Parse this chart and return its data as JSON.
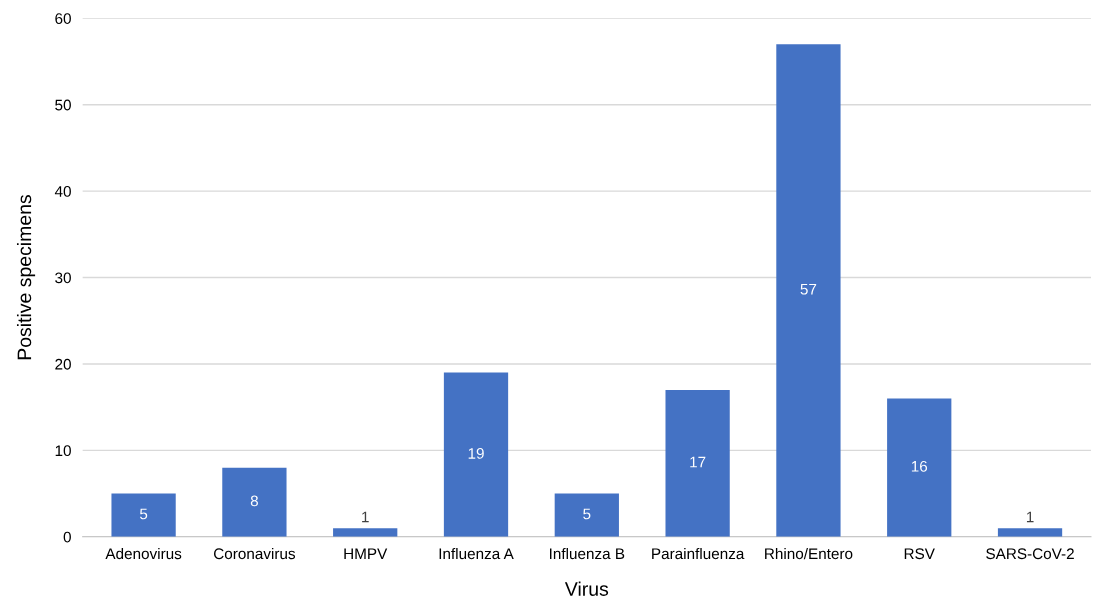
{
  "chart_data": {
    "type": "bar",
    "xlabel": "Virus",
    "ylabel": "Positive specimens",
    "categories": [
      "Adenovirus",
      "Coronavirus",
      "HMPV",
      "Influenza A",
      "Influenza B",
      "Parainfluenza",
      "Rhino/Entero",
      "RSV",
      "SARS-CoV-2"
    ],
    "values": [
      5,
      8,
      1,
      19,
      5,
      17,
      57,
      16,
      1
    ],
    "color": "#4472c4",
    "ylim": [
      0,
      60
    ],
    "yticks": [
      0,
      10,
      20,
      30,
      40,
      50,
      60
    ],
    "grid": "y",
    "data_labels": true
  }
}
